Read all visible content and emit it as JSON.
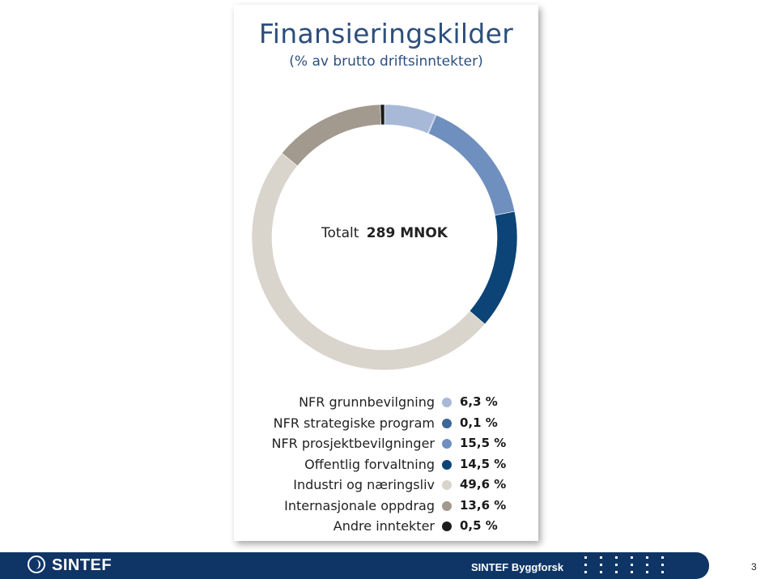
{
  "chart_data": {
    "type": "pie",
    "title": "Finansieringskilder",
    "subtitle": "(% av brutto driftsinntekter)",
    "center_label_prefix": "Totalt",
    "center_label_value": "289 MNOK",
    "slices": [
      {
        "label": "NFR grunnbevilgning",
        "value": 6.3,
        "display": "6,3 %",
        "color": "#a8b9d8"
      },
      {
        "label": "NFR strategiske program",
        "value": 0.1,
        "display": "0,1 %",
        "color": "#3d6699"
      },
      {
        "label": "NFR prosjektbevilgninger",
        "value": 15.5,
        "display": "15,5 %",
        "color": "#6f8fbf"
      },
      {
        "label": "Offentlig forvaltning",
        "value": 14.5,
        "display": "14,5 %",
        "color": "#0c4477"
      },
      {
        "label": "Industri og næringsliv",
        "value": 49.6,
        "display": "49,6 %",
        "color": "#d9d4cc"
      },
      {
        "label": "Internasjonale oppdrag",
        "value": 13.6,
        "display": "13,6 %",
        "color": "#a29a8e"
      },
      {
        "label": "Andre inntekter",
        "value": 0.5,
        "display": "0,5 %",
        "color": "#1b1b1b"
      }
    ]
  },
  "footer": {
    "logo_text": "SINTEF",
    "org_name": "SINTEF Byggforsk",
    "page_number": "3"
  }
}
